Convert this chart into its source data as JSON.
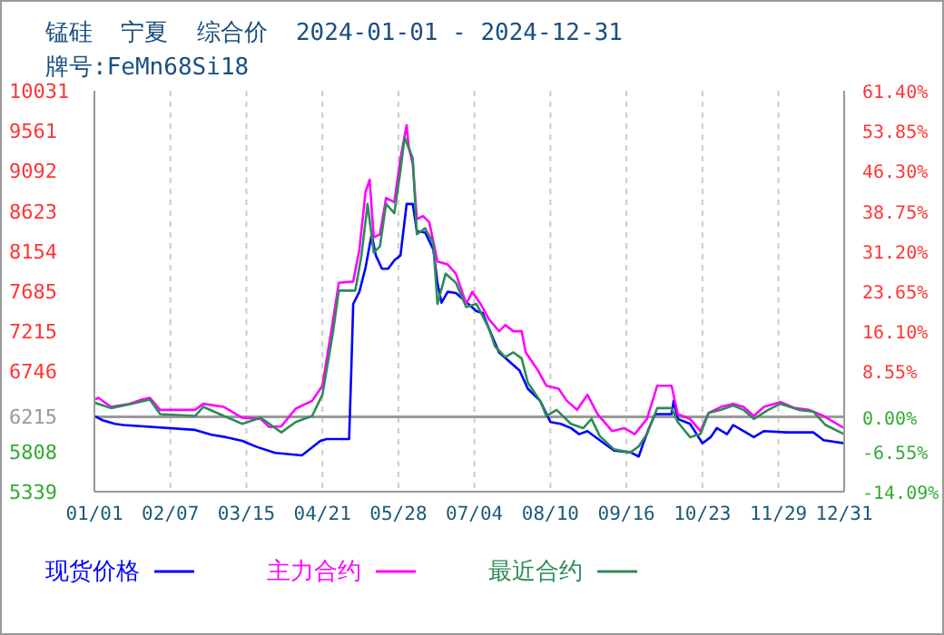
{
  "chart_data": {
    "type": "line",
    "title": "锰硅  宁夏  综合价  2024-01-01 - 2024-12-31",
    "subtitle": "牌号:FeMn68Si18",
    "xlim": [
      "2024-01-01",
      "2024-12-31"
    ],
    "xticks": [
      {
        "value": "2024-01-01",
        "label": "01/01"
      },
      {
        "value": "2024-02-07",
        "label": "02/07"
      },
      {
        "value": "2024-03-15",
        "label": "03/15"
      },
      {
        "value": "2024-04-21",
        "label": "04/21"
      },
      {
        "value": "2024-05-28",
        "label": "05/28"
      },
      {
        "value": "2024-07-04",
        "label": "07/04"
      },
      {
        "value": "2024-08-10",
        "label": "08/10"
      },
      {
        "value": "2024-09-16",
        "label": "09/16"
      },
      {
        "value": "2024-10-23",
        "label": "10/23"
      },
      {
        "value": "2024-11-29",
        "label": "11/29"
      },
      {
        "value": "2024-12-31",
        "label": "12/31"
      }
    ],
    "ylim": [
      5339,
      10031
    ],
    "yticks": [
      5339,
      5808,
      6215,
      6746,
      7215,
      7685,
      8154,
      8623,
      9092,
      9561,
      10031
    ],
    "y2lim": [
      -14.09,
      61.4
    ],
    "y2ticks": [
      {
        "value": -14.09,
        "label": "-14.09%"
      },
      {
        "value": -6.55,
        "label": "-6.55%"
      },
      {
        "value": 0,
        "label": "0.00%"
      },
      {
        "value": 8.55,
        "label": "8.55%"
      },
      {
        "value": 16.1,
        "label": "16.10%"
      },
      {
        "value": 23.65,
        "label": "23.65%"
      },
      {
        "value": 31.2,
        "label": "31.20%"
      },
      {
        "value": 38.75,
        "label": "38.75%"
      },
      {
        "value": 46.3,
        "label": "46.30%"
      },
      {
        "value": 53.85,
        "label": "53.85%"
      },
      {
        "value": 61.4,
        "label": "61.40%"
      }
    ],
    "ref_lines": [
      {
        "axis": "y",
        "value": 6215,
        "color": "#999999",
        "line_style": "solid"
      }
    ],
    "grid": true,
    "legend": "bottom",
    "marker": "none",
    "line_style": "solid",
    "series": [
      {
        "name": "现货价格",
        "color": "#0000ff",
        "x": [
          "2024-01-01",
          "2024-01-05",
          "2024-01-11",
          "2024-01-15",
          "2024-02-19",
          "2024-02-27",
          "2024-03-05",
          "2024-03-13",
          "2024-03-20",
          "2024-03-29",
          "2024-04-11",
          "2024-04-14",
          "2024-04-20",
          "2024-04-23",
          "2024-05-04",
          "2024-05-05",
          "2024-05-06",
          "2024-05-09",
          "2024-05-12",
          "2024-05-15",
          "2024-05-17",
          "2024-05-20",
          "2024-05-23",
          "2024-05-26",
          "2024-05-29",
          "2024-06-01",
          "2024-06-04",
          "2024-06-06",
          "2024-06-10",
          "2024-06-14",
          "2024-06-16",
          "2024-06-18",
          "2024-06-21",
          "2024-06-25",
          "2024-07-01",
          "2024-07-05",
          "2024-07-08",
          "2024-07-11",
          "2024-07-16",
          "2024-07-21",
          "2024-07-26",
          "2024-07-30",
          "2024-08-05",
          "2024-08-10",
          "2024-08-15",
          "2024-08-20",
          "2024-08-24",
          "2024-08-28",
          "2024-09-03",
          "2024-09-10",
          "2024-09-18",
          "2024-09-22",
          "2024-09-24",
          "2024-09-27",
          "2024-09-30",
          "2024-10-08",
          "2024-10-09",
          "2024-10-11",
          "2024-10-17",
          "2024-10-23",
          "2024-10-27",
          "2024-10-30",
          "2024-11-04",
          "2024-11-07",
          "2024-11-12",
          "2024-11-17",
          "2024-11-22",
          "2024-12-03",
          "2024-12-16",
          "2024-12-21",
          "2024-12-31"
        ],
        "values": [
          6225,
          6175,
          6133,
          6119,
          6062,
          6005,
          5977,
          5934,
          5863,
          5792,
          5764,
          5820,
          5934,
          5955,
          5955,
          6707,
          7536,
          7678,
          7961,
          8351,
          8103,
          7947,
          7947,
          8046,
          8103,
          8705,
          8705,
          8386,
          8372,
          8174,
          7784,
          7550,
          7678,
          7664,
          7536,
          7451,
          7430,
          7253,
          6969,
          6863,
          6756,
          6544,
          6402,
          6154,
          6133,
          6083,
          6012,
          6048,
          5941,
          5820,
          5799,
          5750,
          5891,
          6083,
          6246,
          6246,
          6402,
          6190,
          6133,
          5905,
          5977,
          6083,
          6012,
          6119,
          6048,
          5977,
          6048,
          6033,
          6033,
          5941,
          5905
        ]
      },
      {
        "name": "主力合约",
        "color": "#ff00ff",
        "x": [
          "2024-01-01",
          "2024-01-03",
          "2024-01-09",
          "2024-01-18",
          "2024-01-24",
          "2024-01-28",
          "2024-02-02",
          "2024-02-19",
          "2024-02-23",
          "2024-03-04",
          "2024-03-13",
          "2024-03-22",
          "2024-03-26",
          "2024-04-01",
          "2024-04-08",
          "2024-04-16",
          "2024-04-21",
          "2024-04-26",
          "2024-04-29",
          "2024-05-06",
          "2024-05-09",
          "2024-05-12",
          "2024-05-14",
          "2024-05-16",
          "2024-05-19",
          "2024-05-22",
          "2024-05-26",
          "2024-05-29",
          "2024-06-01",
          "2024-06-02",
          "2024-06-04",
          "2024-06-06",
          "2024-06-09",
          "2024-06-12",
          "2024-06-16",
          "2024-06-21",
          "2024-06-25",
          "2024-06-30",
          "2024-07-03",
          "2024-07-07",
          "2024-07-11",
          "2024-07-16",
          "2024-07-19",
          "2024-07-23",
          "2024-07-27",
          "2024-07-29",
          "2024-08-04",
          "2024-08-08",
          "2024-08-14",
          "2024-08-18",
          "2024-08-23",
          "2024-08-28",
          "2024-09-02",
          "2024-09-09",
          "2024-09-15",
          "2024-09-20",
          "2024-09-26",
          "2024-10-01",
          "2024-10-08",
          "2024-10-11",
          "2024-10-17",
          "2024-10-22",
          "2024-10-26",
          "2024-11-01",
          "2024-11-07",
          "2024-11-12",
          "2024-11-17",
          "2024-11-22",
          "2024-11-30",
          "2024-12-07",
          "2024-12-14",
          "2024-12-21",
          "2024-12-31"
        ],
        "values": [
          6416,
          6437,
          6331,
          6367,
          6416,
          6437,
          6296,
          6296,
          6367,
          6331,
          6204,
          6190,
          6097,
          6104,
          6310,
          6402,
          6579,
          7323,
          7784,
          7798,
          8174,
          8847,
          8989,
          8316,
          8351,
          8776,
          8727,
          9237,
          9627,
          9379,
          9166,
          8528,
          8564,
          8493,
          8032,
          7997,
          7890,
          7536,
          7678,
          7536,
          7359,
          7217,
          7288,
          7217,
          7217,
          6969,
          6756,
          6579,
          6544,
          6402,
          6296,
          6473,
          6246,
          6048,
          6083,
          6012,
          6190,
          6579,
          6579,
          6246,
          6190,
          6048,
          6260,
          6331,
          6367,
          6331,
          6225,
          6331,
          6388,
          6317,
          6296,
          6225,
          6083
        ]
      },
      {
        "name": "最近合约",
        "color": "#2e8b57",
        "x": [
          "2024-01-01",
          "2024-01-09",
          "2024-01-19",
          "2024-01-28",
          "2024-02-02",
          "2024-02-19",
          "2024-02-23",
          "2024-03-04",
          "2024-03-13",
          "2024-03-22",
          "2024-04-01",
          "2024-04-08",
          "2024-04-16",
          "2024-04-21",
          "2024-04-26",
          "2024-04-29",
          "2024-05-07",
          "2024-05-10",
          "2024-05-13",
          "2024-05-16",
          "2024-05-19",
          "2024-05-22",
          "2024-05-26",
          "2024-05-29",
          "2024-05-31",
          "2024-06-04",
          "2024-06-06",
          "2024-06-10",
          "2024-06-14",
          "2024-06-16",
          "2024-06-20",
          "2024-06-25",
          "2024-06-30",
          "2024-07-05",
          "2024-07-11",
          "2024-07-14",
          "2024-07-19",
          "2024-07-23",
          "2024-07-27",
          "2024-07-30",
          "2024-08-05",
          "2024-08-08",
          "2024-08-13",
          "2024-08-20",
          "2024-08-26",
          "2024-08-30",
          "2024-09-03",
          "2024-09-10",
          "2024-09-18",
          "2024-09-22",
          "2024-09-26",
          "2024-10-01",
          "2024-10-08",
          "2024-10-11",
          "2024-10-17",
          "2024-10-22",
          "2024-10-26",
          "2024-11-01",
          "2024-11-07",
          "2024-11-12",
          "2024-11-17",
          "2024-11-24",
          "2024-11-30",
          "2024-12-09",
          "2024-12-16",
          "2024-12-22",
          "2024-12-31"
        ],
        "values": [
          6381,
          6317,
          6367,
          6416,
          6246,
          6225,
          6331,
          6225,
          6133,
          6204,
          6033,
          6154,
          6225,
          6473,
          7181,
          7692,
          7692,
          8103,
          8705,
          8138,
          8209,
          8705,
          8598,
          9095,
          9485,
          9237,
          8351,
          8422,
          8245,
          7536,
          7890,
          7784,
          7500,
          7536,
          7253,
          7040,
          6913,
          6969,
          6898,
          6615,
          6402,
          6225,
          6296,
          6133,
          6083,
          6190,
          5991,
          5834,
          5799,
          5870,
          6012,
          6317,
          6317,
          6154,
          5977,
          6012,
          6260,
          6296,
          6346,
          6296,
          6190,
          6296,
          6367,
          6296,
          6275,
          6119,
          6012
        ]
      }
    ]
  }
}
